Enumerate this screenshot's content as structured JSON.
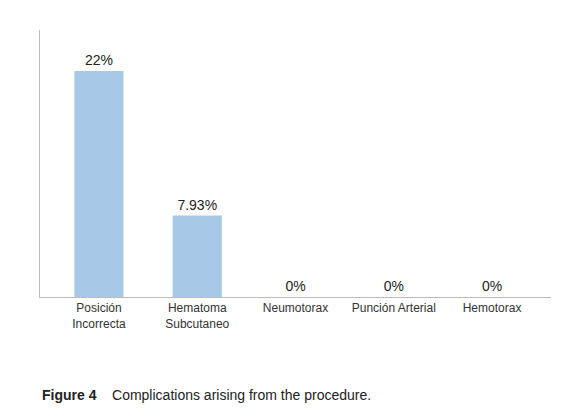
{
  "chart_data": {
    "type": "bar",
    "categories": [
      "Posición\nIncorrecta",
      "Hematoma\nSubcutaneo",
      "Neumotorax",
      "Punción Arterial",
      "Hemotorax"
    ],
    "values": [
      22,
      7.93,
      0,
      0,
      0
    ],
    "value_labels": [
      "22%",
      "7.93%",
      "0%",
      "0%",
      "0%"
    ],
    "data_labels": true,
    "color": "#a8c8e8",
    "ylim": [
      0,
      26
    ],
    "tick_labels": "x",
    "grid": false,
    "annotations": [
      "Figure 4",
      "Complications arising from the procedure."
    ]
  }
}
